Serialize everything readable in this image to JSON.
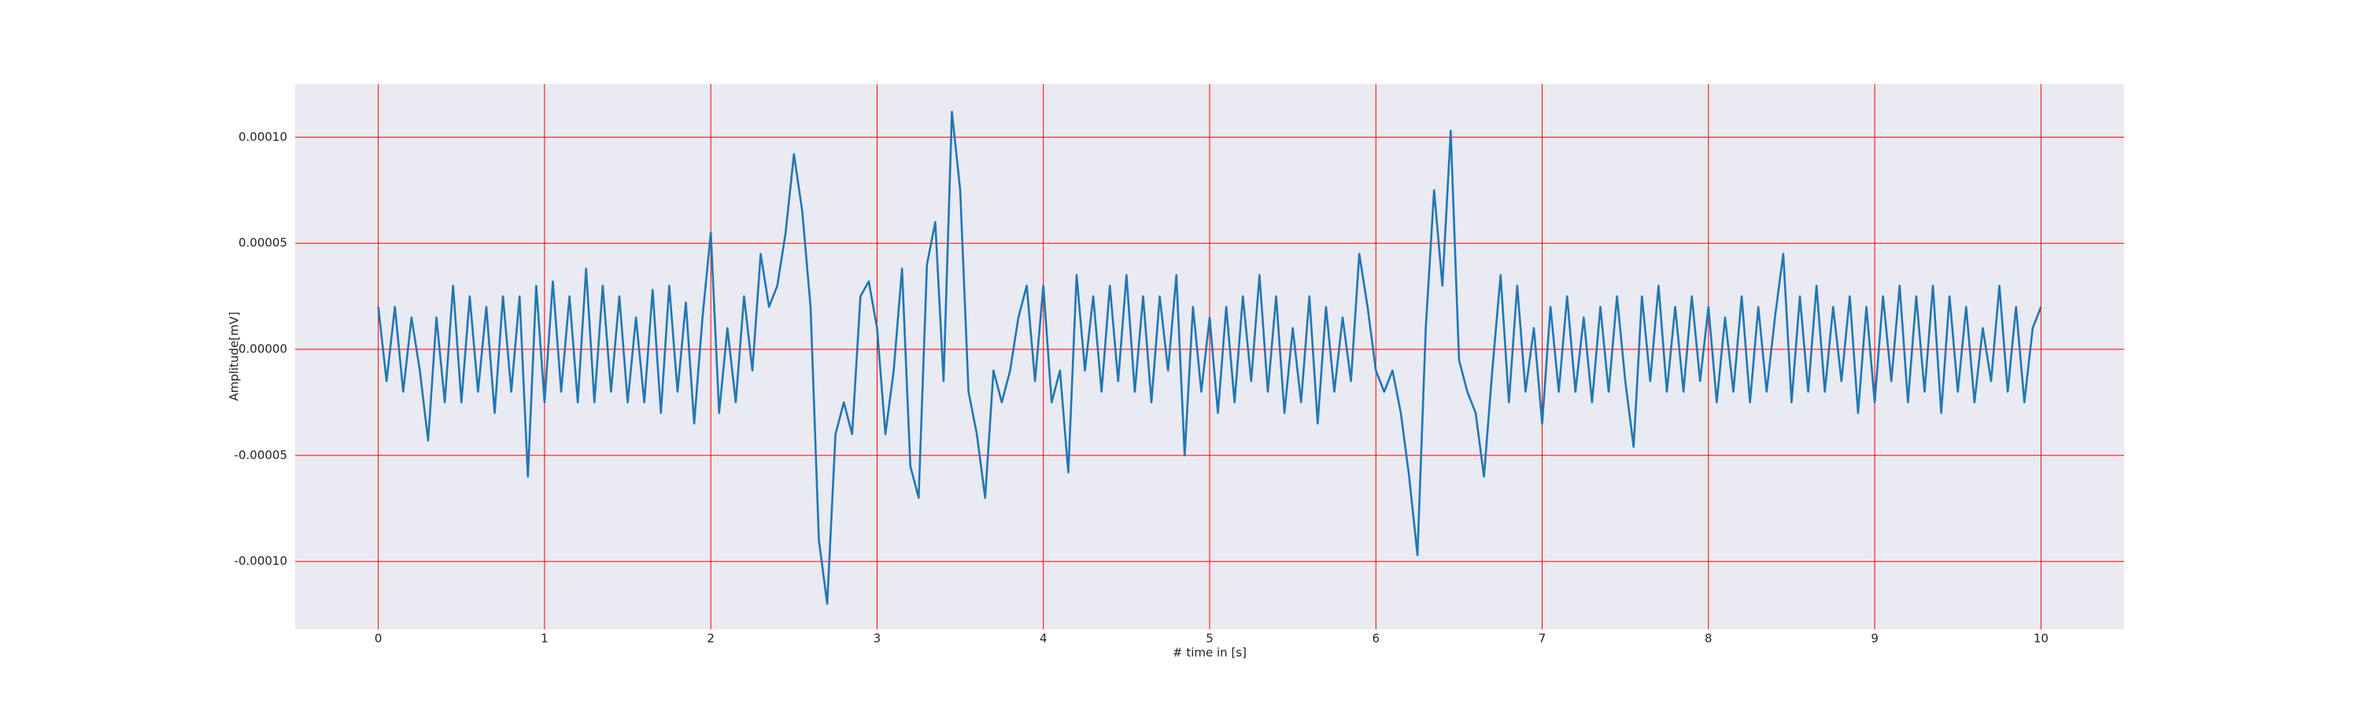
{
  "chart_data": {
    "type": "line",
    "xlabel": "# time in [s]",
    "ylabel": "Amplitude[mV]",
    "x": [
      0,
      0.05,
      0.1,
      0.15,
      0.2,
      0.25,
      0.3,
      0.35,
      0.4,
      0.45,
      0.5,
      0.55,
      0.6,
      0.65,
      0.7,
      0.75,
      0.8,
      0.85,
      0.9,
      0.95,
      1,
      1.05,
      1.1,
      1.15,
      1.2,
      1.25,
      1.3,
      1.35,
      1.4,
      1.45,
      1.5,
      1.55,
      1.6,
      1.65,
      1.7,
      1.75,
      1.8,
      1.85,
      1.9,
      1.95,
      2,
      2.05,
      2.1,
      2.15,
      2.2,
      2.25,
      2.3,
      2.35,
      2.4,
      2.45,
      2.5,
      2.55,
      2.6,
      2.65,
      2.7,
      2.75,
      2.8,
      2.85,
      2.9,
      2.95,
      3,
      3.05,
      3.1,
      3.15,
      3.2,
      3.25,
      3.3,
      3.35,
      3.4,
      3.45,
      3.5,
      3.55,
      3.6,
      3.65,
      3.7,
      3.75,
      3.8,
      3.85,
      3.9,
      3.95,
      4,
      4.05,
      4.1,
      4.15,
      4.2,
      4.25,
      4.3,
      4.35,
      4.4,
      4.45,
      4.5,
      4.55,
      4.6,
      4.65,
      4.7,
      4.75,
      4.8,
      4.85,
      4.9,
      4.95,
      5,
      5.05,
      5.1,
      5.15,
      5.2,
      5.25,
      5.3,
      5.35,
      5.4,
      5.45,
      5.5,
      5.55,
      5.6,
      5.65,
      5.7,
      5.75,
      5.8,
      5.85,
      5.9,
      5.95,
      6,
      6.05,
      6.1,
      6.15,
      6.2,
      6.25,
      6.3,
      6.35,
      6.4,
      6.45,
      6.5,
      6.55,
      6.6,
      6.65,
      6.7,
      6.75,
      6.8,
      6.85,
      6.9,
      6.95,
      7,
      7.05,
      7.1,
      7.15,
      7.2,
      7.25,
      7.3,
      7.35,
      7.4,
      7.45,
      7.5,
      7.55,
      7.6,
      7.65,
      7.7,
      7.75,
      7.8,
      7.85,
      7.9,
      7.95,
      8,
      8.05,
      8.1,
      8.15,
      8.2,
      8.25,
      8.3,
      8.35,
      8.4,
      8.45,
      8.5,
      8.55,
      8.6,
      8.65,
      8.7,
      8.75,
      8.8,
      8.85,
      8.9,
      8.95,
      9,
      9.05,
      9.1,
      9.15,
      9.2,
      9.25,
      9.3,
      9.35,
      9.4,
      9.45,
      9.5,
      9.55,
      9.6,
      9.65,
      9.7,
      9.75,
      9.8,
      9.85,
      9.9,
      9.95,
      10
    ],
    "series": [
      {
        "color": "#1f77b4",
        "values": [
          2e-05,
          -1.5e-05,
          2e-05,
          -2e-05,
          1.5e-05,
          -1e-05,
          -4.3e-05,
          1.5e-05,
          -2.5e-05,
          3e-05,
          -2.5e-05,
          2.5e-05,
          -2e-05,
          2e-05,
          -3e-05,
          2.5e-05,
          -2e-05,
          2.5e-05,
          -6e-05,
          3e-05,
          -2.5e-05,
          3.2e-05,
          -2e-05,
          2.5e-05,
          -2.5e-05,
          3.8e-05,
          -2.5e-05,
          3e-05,
          -2e-05,
          2.5e-05,
          -2.5e-05,
          1.5e-05,
          -2.5e-05,
          2.8e-05,
          -3e-05,
          3e-05,
          -2e-05,
          2.2e-05,
          -3.5e-05,
          1.5e-05,
          5.5e-05,
          -3e-05,
          1e-05,
          -2.5e-05,
          2.5e-05,
          -1e-05,
          4.5e-05,
          2e-05,
          3e-05,
          5.5e-05,
          9.2e-05,
          6.5e-05,
          2e-05,
          -9e-05,
          -0.00012,
          -4e-05,
          -2.5e-05,
          -4e-05,
          2.5e-05,
          3.2e-05,
          1e-05,
          -4e-05,
          -1e-05,
          3.8e-05,
          -5.5e-05,
          -7e-05,
          4e-05,
          6e-05,
          -1.5e-05,
          0.000112,
          7.5e-05,
          -2e-05,
          -4e-05,
          -7e-05,
          -1e-05,
          -2.5e-05,
          -1e-05,
          1.5e-05,
          3e-05,
          -1.5e-05,
          3e-05,
          -2.5e-05,
          -1e-05,
          -5.8e-05,
          3.5e-05,
          -1e-05,
          2.5e-05,
          -2e-05,
          3e-05,
          -1.5e-05,
          3.5e-05,
          -2e-05,
          2.5e-05,
          -2.5e-05,
          2.5e-05,
          -1e-05,
          3.5e-05,
          -5e-05,
          2e-05,
          -2e-05,
          1.5e-05,
          -3e-05,
          2e-05,
          -2.5e-05,
          2.5e-05,
          -1.5e-05,
          3.5e-05,
          -2e-05,
          2.5e-05,
          -3e-05,
          1e-05,
          -2.5e-05,
          2.5e-05,
          -3.5e-05,
          2e-05,
          -2e-05,
          1.5e-05,
          -1.5e-05,
          4.5e-05,
          2e-05,
          -1e-05,
          -2e-05,
          -1e-05,
          -3e-05,
          -6e-05,
          -9.7e-05,
          1e-05,
          7.5e-05,
          3e-05,
          0.000103,
          -5e-06,
          -2e-05,
          -3e-05,
          -6e-05,
          -1e-05,
          3.5e-05,
          -2.5e-05,
          3e-05,
          -2e-05,
          1e-05,
          -3.5e-05,
          2e-05,
          -2e-05,
          2.5e-05,
          -2e-05,
          1.5e-05,
          -2.5e-05,
          2e-05,
          -2e-05,
          2.5e-05,
          -1.5e-05,
          -4.6e-05,
          2.5e-05,
          -1.5e-05,
          3e-05,
          -2e-05,
          2e-05,
          -2e-05,
          2.5e-05,
          -1.5e-05,
          2e-05,
          -2.5e-05,
          1.5e-05,
          -2e-05,
          2.5e-05,
          -2.5e-05,
          2e-05,
          -2e-05,
          1.5e-05,
          4.5e-05,
          -2.5e-05,
          2.5e-05,
          -2e-05,
          3e-05,
          -2e-05,
          2e-05,
          -1.5e-05,
          2.5e-05,
          -3e-05,
          2e-05,
          -2.5e-05,
          2.5e-05,
          -1.5e-05,
          3e-05,
          -2.5e-05,
          2.5e-05,
          -2e-05,
          3e-05,
          -3e-05,
          2.5e-05,
          -2e-05,
          2e-05,
          -2.5e-05,
          1e-05,
          -1.5e-05,
          3e-05,
          -2e-05,
          2e-05,
          -2.5e-05,
          1e-05,
          2e-05
        ]
      }
    ],
    "xlim": [
      -0.5,
      10.5
    ],
    "ylim": [
      -0.000132,
      0.000125
    ],
    "xticks": [
      0,
      1,
      2,
      3,
      4,
      5,
      6,
      7,
      8,
      9,
      10
    ],
    "yticks": [
      {
        "value": -0.0001,
        "label": "-0.00010"
      },
      {
        "value": -5e-05,
        "label": "-0.00005"
      },
      {
        "value": 0,
        "label": "0.00000"
      },
      {
        "value": 5e-05,
        "label": "0.00005"
      },
      {
        "value": 0.0001,
        "label": "0.00010"
      }
    ],
    "grid": true,
    "grid_color": "#ff0000",
    "background": "#eaeaf2"
  }
}
